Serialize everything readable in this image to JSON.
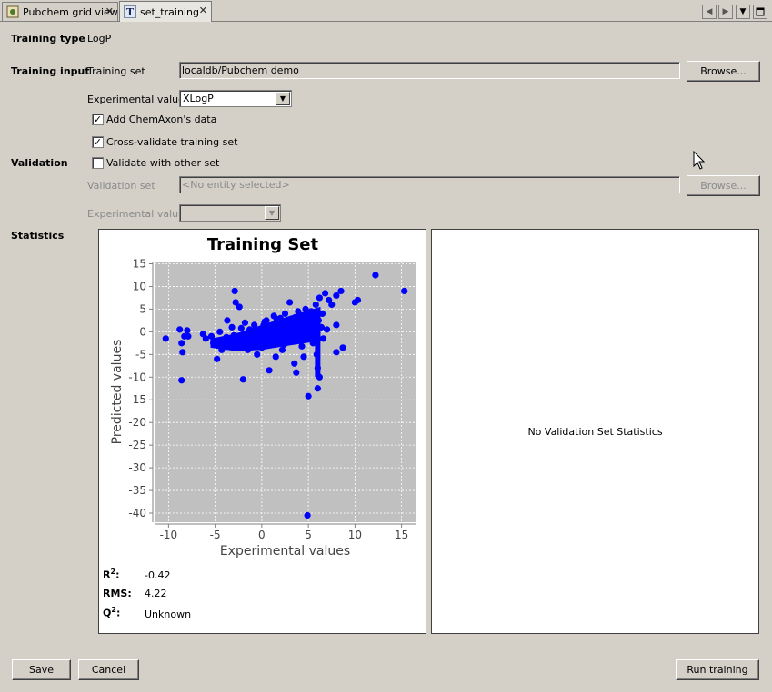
{
  "tabs": [
    {
      "label": "Pubchem grid view",
      "active": false
    },
    {
      "label": "set_training",
      "active": true
    }
  ],
  "form": {
    "training_type_label": "Training type",
    "training_type_value": "LogP",
    "training_input_label": "Training input",
    "training_set_label": "Training set",
    "training_set_value": "localdb/Pubchem demo",
    "browse_label": "Browse...",
    "experimental_values_label": "Experimental values",
    "experimental_values_selected": "XLogP",
    "add_chemaxon_label": "Add ChemAxon's data",
    "add_chemaxon_checked": true,
    "cross_validate_label": "Cross-validate training set",
    "cross_validate_checked": true,
    "validation_label": "Validation",
    "validate_other_label": "Validate with other set",
    "validate_other_checked": false,
    "validation_set_label": "Validation set",
    "validation_set_placeholder": "<No entity selected>",
    "validation_browse_label": "Browse...",
    "validation_experimental_label": "Experimental values",
    "statistics_label": "Statistics"
  },
  "stats": {
    "r2_label": "R",
    "r2_sup": "2",
    "r2_colon": ":",
    "r2_value": "-0.42",
    "rms_label": "RMS:",
    "rms_value": "4.22",
    "q2_label": "Q",
    "q2_sup": "2",
    "q2_colon": ":",
    "q2_value": "Unknown"
  },
  "validation_panel": {
    "message": "No Validation Set Statistics"
  },
  "buttons": {
    "save": "Save",
    "cancel": "Cancel",
    "run_training": "Run training"
  },
  "colors": {
    "point": "#0000ff",
    "plot_bg": "#c0c0c0",
    "grid": "#ffffff"
  },
  "chart_data": {
    "type": "scatter",
    "title": "Training Set",
    "xlabel": "Experimental values",
    "ylabel": "Predicted values",
    "xlim": [
      -11.5,
      16.5
    ],
    "ylim": [
      -42,
      15.5
    ],
    "xticks": [
      -10,
      -5,
      0,
      5,
      10,
      15
    ],
    "yticks": [
      15,
      10,
      5,
      0,
      -5,
      -10,
      -15,
      -20,
      -25,
      -30,
      -35,
      -40
    ],
    "grid": true,
    "series": [
      {
        "points": [
          [
            -10.3,
            -1.5
          ],
          [
            -8.5,
            -4.5
          ],
          [
            -8.6,
            -2.5
          ],
          [
            -8.8,
            0.5
          ],
          [
            -8.3,
            -1.0
          ],
          [
            -8.6,
            -10.7
          ],
          [
            -8.0,
            0.3
          ],
          [
            -7.9,
            -1.0
          ],
          [
            -5.4,
            -1.0
          ],
          [
            -5.2,
            -2.5
          ],
          [
            -4.8,
            -3.0
          ],
          [
            -4.8,
            -6.0
          ],
          [
            -4.3,
            -4.0
          ],
          [
            -4.0,
            -2.0
          ],
          [
            -3.7,
            2.5
          ],
          [
            -3.4,
            -1.5
          ],
          [
            -3.2,
            1.0
          ],
          [
            -2.9,
            9.0
          ],
          [
            -2.8,
            6.5
          ],
          [
            -2.4,
            5.5
          ],
          [
            -2.7,
            -1.0
          ],
          [
            -2.5,
            -3.0
          ],
          [
            -2.2,
            -2.0
          ],
          [
            -2.0,
            -10.5
          ],
          [
            -1.8,
            2.0
          ],
          [
            -1.5,
            -4.0
          ],
          [
            -1.3,
            0.5
          ],
          [
            -1.0,
            -2.5
          ],
          [
            -0.8,
            1.5
          ],
          [
            -0.5,
            -5.0
          ],
          [
            -0.3,
            0.0
          ],
          [
            0.0,
            -3.5
          ],
          [
            0.2,
            1.5
          ],
          [
            0.5,
            2.5
          ],
          [
            0.8,
            -8.5
          ],
          [
            1.0,
            -1.0
          ],
          [
            1.3,
            3.5
          ],
          [
            1.5,
            -5.5
          ],
          [
            1.8,
            0.0
          ],
          [
            2.0,
            3.0
          ],
          [
            2.2,
            -4.0
          ],
          [
            2.5,
            4.0
          ],
          [
            2.8,
            -2.0
          ],
          [
            3.0,
            6.5
          ],
          [
            3.3,
            1.5
          ],
          [
            3.5,
            -7.0
          ],
          [
            3.7,
            -9.0
          ],
          [
            3.9,
            4.5
          ],
          [
            4.2,
            0.5
          ],
          [
            4.5,
            -5.5
          ],
          [
            4.7,
            5.0
          ],
          [
            5.0,
            -14.2
          ],
          [
            5.2,
            3.5
          ],
          [
            5.5,
            -2.5
          ],
          [
            5.8,
            6.0
          ],
          [
            6.0,
            -12.5
          ],
          [
            6.2,
            7.5
          ],
          [
            6.4,
            1.0
          ],
          [
            6.5,
            4.0
          ],
          [
            6.8,
            8.5
          ],
          [
            7.2,
            7.0
          ],
          [
            7.5,
            6.0
          ],
          [
            8.0,
            8.0
          ],
          [
            8.5,
            9.0
          ],
          [
            8.0,
            1.5
          ],
          [
            8.0,
            -4.5
          ],
          [
            8.7,
            -3.5
          ],
          [
            10.0,
            6.5
          ],
          [
            10.3,
            7.0
          ],
          [
            12.2,
            12.5
          ],
          [
            15.3,
            9.0
          ],
          [
            4.9,
            -40.5
          ],
          [
            -6.0,
            -1.5
          ],
          [
            -6.3,
            -0.5
          ],
          [
            -4.5,
            0.0
          ],
          [
            -3.8,
            -1.2
          ],
          [
            -3.0,
            -0.8
          ],
          [
            -1.2,
            -3.5
          ],
          [
            -0.2,
            -2.0
          ],
          [
            0.6,
            -1.5
          ],
          [
            1.2,
            0.5
          ],
          [
            1.9,
            -0.5
          ],
          [
            2.6,
            1.5
          ],
          [
            3.2,
            0.0
          ],
          [
            4.0,
            2.0
          ],
          [
            4.6,
            3.0
          ],
          [
            5.3,
            4.5
          ],
          [
            6.1,
            2.5
          ],
          [
            6.6,
            -1.5
          ],
          [
            7.0,
            0.5
          ],
          [
            -2.2,
            0.8
          ],
          [
            -1.6,
            -0.8
          ],
          [
            -0.9,
            0.2
          ],
          [
            0.3,
            2.2
          ],
          [
            1.6,
            2.8
          ],
          [
            2.4,
            -2.8
          ],
          [
            3.6,
            3.2
          ],
          [
            4.3,
            -3.2
          ],
          [
            5.6,
            1.8
          ],
          [
            6.0,
            -8.0
          ],
          [
            5.9,
            -5.0
          ],
          [
            6.2,
            -10.0
          ]
        ]
      }
    ]
  }
}
